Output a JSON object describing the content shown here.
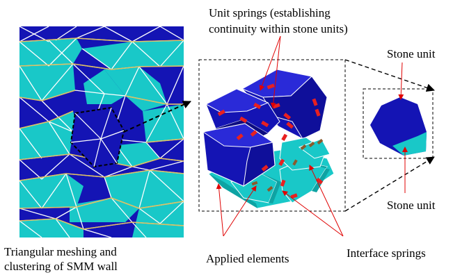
{
  "labels": {
    "unit_springs_line1": "Unit springs (establishing",
    "unit_springs_line2": "continuity within stone units)",
    "stone_unit_top": "Stone unit",
    "stone_unit_bottom": "Stone unit",
    "meshing_line1": "Triangular meshing and",
    "meshing_line2": "clustering of SMM wall",
    "applied_elements": "Applied elements",
    "interface_springs": "Interface springs"
  },
  "colors": {
    "dark_blue": "#1414b4",
    "cyan": "#19c8c8",
    "mesh_line": "#ffffff",
    "joint_line": "#e0c060",
    "spring_red": "#e82020",
    "spring_brown": "#8b5a2b",
    "arrow_red": "#e00000"
  }
}
